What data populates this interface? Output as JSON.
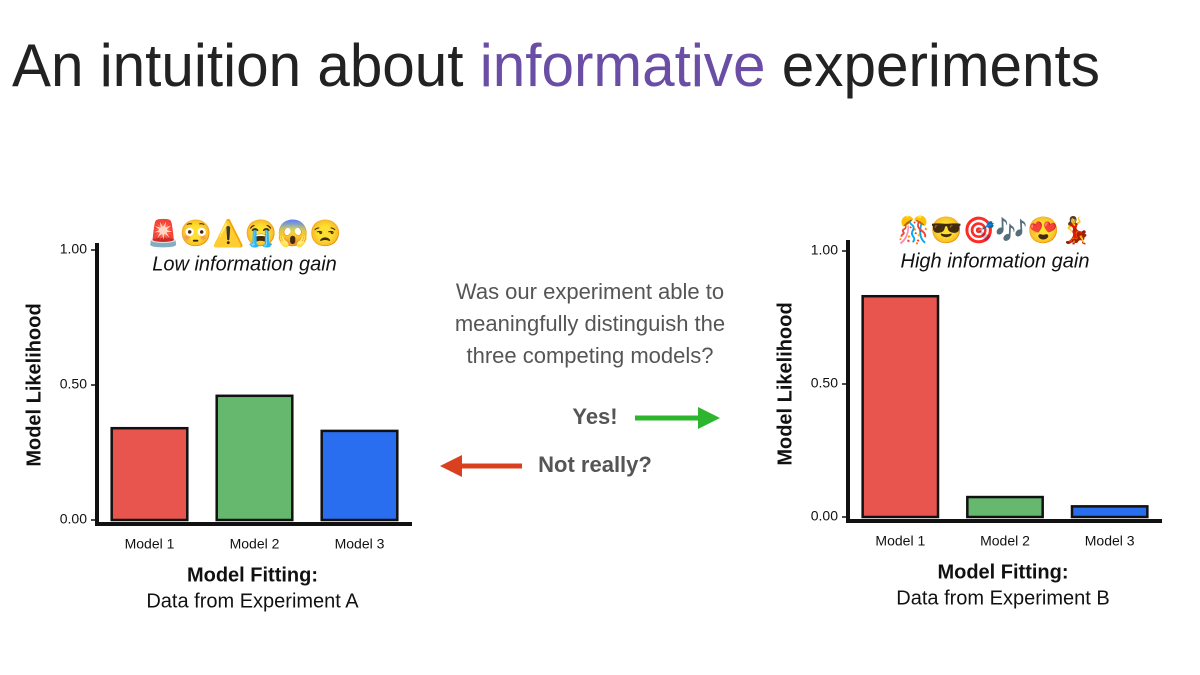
{
  "title_parts": [
    "An intuition about",
    "informative",
    "experiments"
  ],
  "question_lines": [
    "Was our experiment able to",
    "meaningfully distinguish the",
    "three competing models?"
  ],
  "yes_label": "Yes!",
  "not_really_label": "Not really?",
  "chart_data": [
    {
      "type": "bar",
      "emojis": "🚨😳⚠️😭😱😒",
      "annotation": "Low information gain",
      "y_label": "Model Likelihood",
      "x_label": "Model Fitting:",
      "x_sublabel": "Data from Experiment A",
      "categories": [
        "Model 1",
        "Model 2",
        "Model 3"
      ],
      "values": [
        0.34,
        0.46,
        0.33
      ],
      "colors": [
        "#e8554e",
        "#66b86f",
        "#2a6ef0"
      ],
      "ylim": [
        0,
        1
      ],
      "yticks": [
        {
          "value": 0,
          "label": "0.00"
        },
        {
          "value": 0.5,
          "label": "0.50"
        },
        {
          "value": 1,
          "label": "1.00"
        }
      ]
    },
    {
      "type": "bar",
      "emojis": "🎊😎🎯🎶😍💃",
      "annotation": "High information gain",
      "y_label": "Model Likelihood",
      "x_label": "Model Fitting:",
      "x_sublabel": "Data from Experiment B",
      "categories": [
        "Model 1",
        "Model 2",
        "Model 3"
      ],
      "values": [
        0.83,
        0.075,
        0.04
      ],
      "colors": [
        "#e8554e",
        "#66b86f",
        "#2a6ef0"
      ],
      "ylim": [
        0,
        1
      ],
      "yticks": [
        {
          "value": 0,
          "label": "0.00"
        },
        {
          "value": 0.5,
          "label": "0.50"
        },
        {
          "value": 1,
          "label": "1.00"
        }
      ]
    }
  ]
}
